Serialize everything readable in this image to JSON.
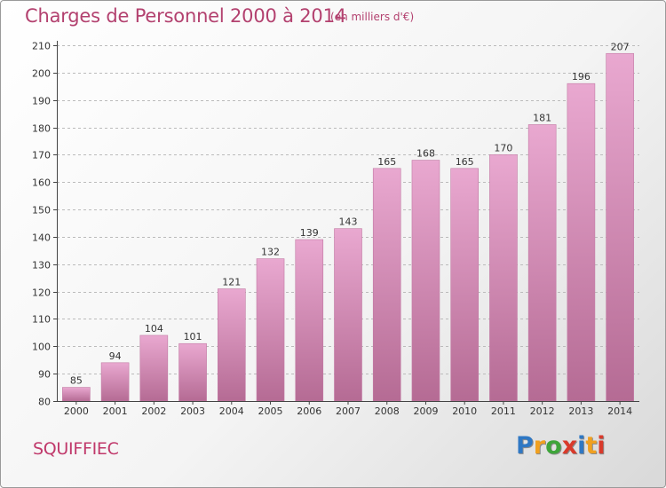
{
  "header": {
    "title": "Charges de Personnel 2000 à 2014",
    "subtitle": "(en milliers d'€)"
  },
  "footer": {
    "commune": "SQUIFFIEC",
    "logo_letters": [
      "P",
      "r",
      "o",
      "x",
      "i",
      "t",
      "i"
    ],
    "logo_colors": [
      "#2f78c4",
      "#f0a020",
      "#3ea53a",
      "#d93a2b",
      "#2f78c4",
      "#f0a020",
      "#d93a2b"
    ]
  },
  "colors": {
    "bar_top": "#e9a8d0",
    "bar_bottom": "#b56b94",
    "bar_edge": "#c27aa4",
    "grid": "#bbbbbb",
    "axis": "#444444"
  },
  "chart_data": {
    "type": "bar",
    "title": "Charges de Personnel 2000 à 2014",
    "subtitle": "(en milliers d'€)",
    "xlabel": "",
    "ylabel": "",
    "categories": [
      "2000",
      "2001",
      "2002",
      "2003",
      "2004",
      "2005",
      "2006",
      "2007",
      "2008",
      "2009",
      "2010",
      "2011",
      "2012",
      "2013",
      "2014"
    ],
    "values": [
      85,
      94,
      104,
      101,
      121,
      132,
      139,
      143,
      165,
      168,
      165,
      170,
      181,
      196,
      207
    ],
    "ylim": [
      80,
      210
    ],
    "yticks": [
      80,
      90,
      100,
      110,
      120,
      130,
      140,
      150,
      160,
      170,
      180,
      190,
      200,
      210
    ],
    "grid": true,
    "data_labels": true
  }
}
